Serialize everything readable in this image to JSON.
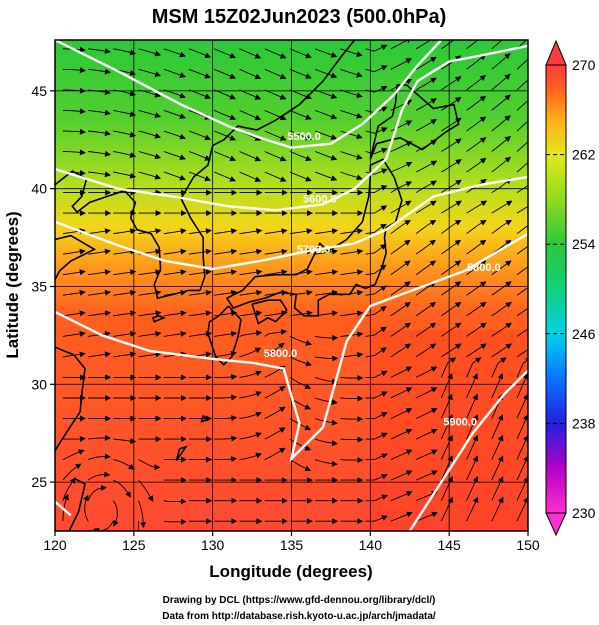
{
  "title": "MSM 15Z02Jun2023 (500.0hPa)",
  "xlabel": "Longitude (degrees)",
  "ylabel": "Latitude  (degrees)",
  "credits": [
    "Drawing by DCL (https://www.gfd-dennou.org/library/dcl/)",
    "Data from http://database.rish.kyoto-u.ac.jp/arch/jmadata/"
  ],
  "map": {
    "lon_range": [
      120,
      150
    ],
    "lat_range": [
      22.5,
      47.6
    ],
    "lon_ticks": [
      120,
      125,
      130,
      135,
      140,
      145,
      150
    ],
    "lat_ticks": [
      25,
      30,
      35,
      40,
      45
    ],
    "grid": true
  },
  "colorbar": {
    "min": 230,
    "max": 270,
    "ticks": [
      230,
      238,
      246,
      254,
      262,
      270
    ],
    "stops": [
      {
        "v": 230,
        "color": "#ff2fd0"
      },
      {
        "v": 234,
        "color": "#b400c8"
      },
      {
        "v": 238,
        "color": "#2020e0"
      },
      {
        "v": 242,
        "color": "#0a74ff"
      },
      {
        "v": 246,
        "color": "#00d2e6"
      },
      {
        "v": 250,
        "color": "#10d27a"
      },
      {
        "v": 254,
        "color": "#2cc83a"
      },
      {
        "v": 258,
        "color": "#8edc1c"
      },
      {
        "v": 262,
        "color": "#e4e81a"
      },
      {
        "v": 265,
        "color": "#ffb01a"
      },
      {
        "v": 268,
        "color": "#ff5f1e"
      },
      {
        "v": 270,
        "color": "#ff3c3c"
      }
    ]
  },
  "contours": [
    {
      "label": "5500.0",
      "points": [
        [
          120,
          47.6
        ],
        [
          124,
          46
        ],
        [
          128,
          44.3
        ],
        [
          131,
          43.2
        ],
        [
          133,
          42.6
        ],
        [
          135,
          42.1
        ],
        [
          137.5,
          42.3
        ],
        [
          139.5,
          43.3
        ],
        [
          141.5,
          44.8
        ],
        [
          143,
          46.3
        ],
        [
          144.5,
          47.6
        ]
      ]
    },
    {
      "label": "5600.0",
      "points": [
        [
          120,
          41
        ],
        [
          124,
          40
        ],
        [
          127.5,
          39.6
        ],
        [
          131,
          39.1
        ],
        [
          134,
          38.9
        ],
        [
          137,
          39.2
        ],
        [
          139,
          40
        ],
        [
          141,
          41.5
        ],
        [
          142,
          44
        ],
        [
          143,
          45.5
        ],
        [
          145,
          46.5
        ],
        [
          147,
          46.8
        ],
        [
          150,
          47.3
        ]
      ]
    },
    {
      "label": "5700.0",
      "points": [
        [
          120,
          38.3
        ],
        [
          124,
          37.1
        ],
        [
          127,
          36.3
        ],
        [
          130,
          35.9
        ],
        [
          133,
          36.3
        ],
        [
          136,
          36.8
        ],
        [
          139,
          37.2
        ],
        [
          141,
          37.9
        ],
        [
          144,
          39.6
        ],
        [
          147,
          40.2
        ],
        [
          150,
          40.6
        ]
      ]
    },
    {
      "label": "5800.0",
      "points": [
        [
          120,
          33.7
        ],
        [
          123,
          32.5
        ],
        [
          126,
          31.7
        ],
        [
          130,
          31.3
        ],
        [
          132.5,
          31.1
        ],
        [
          134.5,
          30.8
        ],
        [
          135.5,
          28
        ],
        [
          135,
          26.2
        ],
        [
          137,
          27.8
        ],
        [
          138.5,
          32.2
        ],
        [
          140,
          34
        ],
        [
          143,
          34.9
        ],
        [
          146,
          35.8
        ],
        [
          150,
          37.7
        ]
      ]
    },
    {
      "label": "5800.0",
      "points": [
        [
          120,
          24
        ],
        [
          121,
          23.3
        ]
      ]
    },
    {
      "label": "5900.0",
      "points": [
        [
          142.5,
          22.5
        ],
        [
          144.5,
          25
        ],
        [
          146.5,
          27.5
        ],
        [
          148.5,
          29.5
        ],
        [
          150,
          30.7
        ]
      ]
    }
  ],
  "contour_labels": [
    {
      "text": "5500.0",
      "lon": 135.8,
      "lat": 42.5
    },
    {
      "text": "5600.0",
      "lon": 136.8,
      "lat": 39.3
    },
    {
      "text": "5700.0",
      "lon": 136.4,
      "lat": 36.7
    },
    {
      "text": "5800.0",
      "lon": 147.2,
      "lat": 35.8
    },
    {
      "text": "5800.0",
      "lon": 134.3,
      "lat": 31.4
    },
    {
      "text": "5900.0",
      "lon": 145.7,
      "lat": 27.9
    }
  ],
  "coastlines": [
    [
      [
        140,
        41.5
      ],
      [
        140.4,
        42.3
      ],
      [
        141.3,
        42.5
      ],
      [
        141.9,
        42.6
      ],
      [
        143.3,
        42
      ],
      [
        144.8,
        42.9
      ],
      [
        145.6,
        43.3
      ],
      [
        145.3,
        44.3
      ],
      [
        144,
        44.1
      ],
      [
        142.3,
        45.3
      ],
      [
        141.7,
        45.3
      ],
      [
        141.6,
        44.4
      ],
      [
        141.4,
        43.7
      ],
      [
        140.5,
        43.2
      ],
      [
        140.2,
        42.2
      ],
      [
        140,
        41.5
      ]
    ],
    [
      [
        140,
        41.2
      ],
      [
        140.8,
        41.5
      ],
      [
        141.5,
        40.6
      ],
      [
        142,
        39.4
      ],
      [
        141.6,
        38.3
      ],
      [
        141,
        38
      ],
      [
        140.9,
        37.5
      ],
      [
        141,
        36.7
      ],
      [
        140.7,
        35.9
      ],
      [
        140.3,
        35.1
      ],
      [
        139.7,
        34.9
      ],
      [
        139.1,
        35.1
      ],
      [
        138.7,
        34.6
      ],
      [
        137.4,
        34.6
      ],
      [
        136.7,
        34.3
      ],
      [
        136.7,
        33.5
      ],
      [
        135.8,
        33.5
      ],
      [
        135.2,
        33.9
      ],
      [
        135.3,
        34.6
      ],
      [
        134.3,
        34.7
      ],
      [
        133.3,
        34.4
      ],
      [
        132.3,
        34.2
      ],
      [
        131.3,
        33.9
      ],
      [
        130.9,
        34.4
      ],
      [
        131.9,
        34.8
      ],
      [
        132.7,
        35.5
      ],
      [
        134,
        35.6
      ],
      [
        135.3,
        35.6
      ],
      [
        136,
        35.9
      ],
      [
        136.8,
        37.2
      ],
      [
        137.3,
        36.8
      ],
      [
        138.5,
        37.4
      ],
      [
        139.5,
        38.3
      ],
      [
        139.9,
        39.6
      ],
      [
        140,
        40.6
      ],
      [
        140,
        41.2
      ]
    ],
    [
      [
        131,
        34
      ],
      [
        130.4,
        33.5
      ],
      [
        129.8,
        33.2
      ],
      [
        129.7,
        32.6
      ],
      [
        130.2,
        31.4
      ],
      [
        130.7,
        31
      ],
      [
        131.2,
        31.4
      ],
      [
        131.6,
        32.4
      ],
      [
        131.8,
        33.3
      ],
      [
        131,
        34
      ]
    ],
    [
      [
        132.5,
        34.1
      ],
      [
        132.9,
        33.1
      ],
      [
        133.5,
        33.4
      ],
      [
        134,
        33.2
      ],
      [
        134.7,
        33.8
      ],
      [
        134.3,
        34.3
      ],
      [
        133.5,
        34.3
      ],
      [
        132.5,
        34.1
      ]
    ],
    [
      [
        129.2,
        34.8
      ],
      [
        129.5,
        35.5
      ],
      [
        129.4,
        36.5
      ],
      [
        129.4,
        37.5
      ],
      [
        128.6,
        38.5
      ],
      [
        128,
        39.5
      ],
      [
        128.8,
        40.6
      ],
      [
        129.7,
        41.2
      ],
      [
        130,
        42.2
      ],
      [
        130.7,
        42.5
      ],
      [
        131.6,
        43.2
      ],
      [
        132.8,
        43
      ],
      [
        134,
        43.5
      ],
      [
        135.5,
        44.3
      ],
      [
        137,
        45.5
      ],
      [
        138.2,
        46.8
      ],
      [
        139,
        47.6
      ]
    ],
    [
      [
        129.2,
        34.8
      ],
      [
        128.5,
        34.8
      ],
      [
        127.5,
        34.6
      ],
      [
        126.5,
        34.4
      ],
      [
        126.3,
        35.1
      ],
      [
        126.7,
        35.9
      ],
      [
        126.6,
        37
      ],
      [
        126.1,
        37.7
      ],
      [
        125.2,
        37.9
      ],
      [
        124.8,
        38.5
      ],
      [
        125.1,
        39.3
      ],
      [
        124.4,
        39.9
      ],
      [
        123.3,
        39.6
      ],
      [
        122.2,
        39.3
      ],
      [
        121.4,
        38.8
      ],
      [
        121.1,
        39.1
      ],
      [
        121.7,
        39.6
      ],
      [
        122,
        40.5
      ],
      [
        121.1,
        40.9
      ],
      [
        120,
        40.2
      ]
    ],
    [
      [
        120,
        37.4
      ],
      [
        121,
        37.6
      ],
      [
        122.5,
        36.9
      ],
      [
        121,
        36.3
      ],
      [
        120.3,
        35.8
      ],
      [
        119.9,
        35.2
      ]
    ],
    [
      [
        120,
        31.9
      ],
      [
        121.2,
        31.5
      ],
      [
        121.9,
        30.8
      ],
      [
        121.7,
        29.5
      ],
      [
        121.6,
        28.6
      ],
      [
        120.7,
        27.5
      ],
      [
        120,
        26.6
      ]
    ],
    [
      [
        121.2,
        25.2
      ],
      [
        121.9,
        24.9
      ],
      [
        121.5,
        23.5
      ],
      [
        120.9,
        22.5
      ]
    ],
    [
      [
        126.6,
        33.5
      ],
      [
        126.9,
        33.4
      ],
      [
        126.3,
        33.2
      ],
      [
        126.2,
        33.4
      ],
      [
        126.6,
        33.5
      ]
    ],
    [
      [
        127.9,
        26.7
      ],
      [
        128.3,
        26.8
      ],
      [
        127.7,
        26.1
      ],
      [
        127.9,
        26.7
      ]
    ],
    [
      [
        129.4,
        28.4
      ],
      [
        129.7,
        28.2
      ],
      [
        129.3,
        28.1
      ],
      [
        129.4,
        28.4
      ]
    ]
  ]
}
